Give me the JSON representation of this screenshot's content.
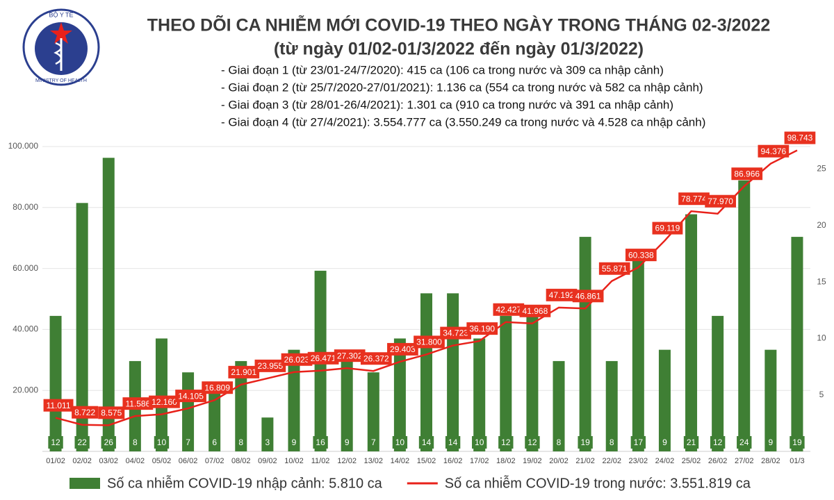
{
  "logo": {
    "top": "BỘ Y TẾ",
    "bottom": "MINISTRY OF HEALTH"
  },
  "chart_data": {
    "type": "combo",
    "title": "THEO DÕI CA NHIỄM MỚI COVID-19 THEO NGÀY TRONG THÁNG 02-3/2022",
    "subtitle": "(từ ngày 01/02-01/3/2022 đến ngày 01/3/2022)",
    "notes": [
      "- Giai đoạn 1 (từ 23/01-24/7/2020): 415 ca (106 ca trong nước và 309 ca nhập cảnh)",
      "- Giai đoạn 2 (từ 25/7/2020-27/01/2021): 1.136 ca (554 ca trong nước và 582 ca nhập cảnh)",
      "- Giai đoạn 3 (từ 28/01-26/4/2021): 1.301 ca (910 ca trong nước và 391 ca nhập cảnh)",
      "- Giai đoạn 4 (từ 27/4/2021): 3.554.777 ca (3.550.249 ca trong nước và 4.528 ca nhập cảnh)"
    ],
    "categories": [
      "01/02",
      "02/02",
      "03/02",
      "04/02",
      "05/02",
      "06/02",
      "07/02",
      "08/02",
      "09/02",
      "10/02",
      "11/02",
      "12/02",
      "13/02",
      "14/02",
      "15/02",
      "16/02",
      "17/02",
      "18/02",
      "19/02",
      "20/02",
      "21/02",
      "22/02",
      "23/02",
      "24/02",
      "25/02",
      "26/02",
      "27/02",
      "28/02",
      "01/3"
    ],
    "ylim": [
      0,
      100000
    ],
    "yticks": [
      {
        "value": 20000,
        "label": "20.000"
      },
      {
        "value": 40000,
        "label": "40.000"
      },
      {
        "value": 60000,
        "label": "60.000"
      },
      {
        "value": 80000,
        "label": "80.000"
      },
      {
        "value": 100000,
        "label": "100.000"
      }
    ],
    "y2lim": [
      0,
      27
    ],
    "y2ticks": [
      5,
      10,
      15,
      20,
      25
    ],
    "grid": true,
    "series": [
      {
        "name": "Số ca nhiễm COVID-19 nhập cảnh: 5.810 ca",
        "type": "bar",
        "axis": "y2",
        "color": "#3f7f34",
        "values": [
          12,
          22,
          26,
          8,
          10,
          7,
          6,
          8,
          3,
          9,
          16,
          9,
          7,
          10,
          14,
          14,
          10,
          12,
          12,
          8,
          19,
          8,
          17,
          9,
          21,
          12,
          24,
          9,
          19
        ]
      },
      {
        "name": "Số ca nhiễm COVID-19 trong nước: 3.551.819 ca",
        "type": "line",
        "color": "#e8211a",
        "values": [
          11011,
          8722,
          8575,
          11586,
          12160,
          14105,
          16809,
          21901,
          23955,
          26023,
          26471,
          27302,
          26372,
          29403,
          31800,
          34723,
          36190,
          42427,
          41968,
          47192,
          46861,
          55871,
          60338,
          69119,
          78774,
          77970,
          86966,
          94376,
          98743
        ],
        "value_labels": [
          "11.011",
          "8.722",
          "8.575",
          "11.586",
          "12.160",
          "14.105",
          "16.809",
          "21.901",
          "23.955",
          "26.023",
          "26.471",
          "27.302",
          "26.372",
          "29.403",
          "31.800",
          "34.723",
          "36.190",
          "42.427",
          "41.968",
          "47.192",
          "46.861",
          "55.871",
          "60.338",
          "69.119",
          "78.774",
          "77.970",
          "86.966",
          "94.376",
          "98.743"
        ]
      }
    ]
  }
}
